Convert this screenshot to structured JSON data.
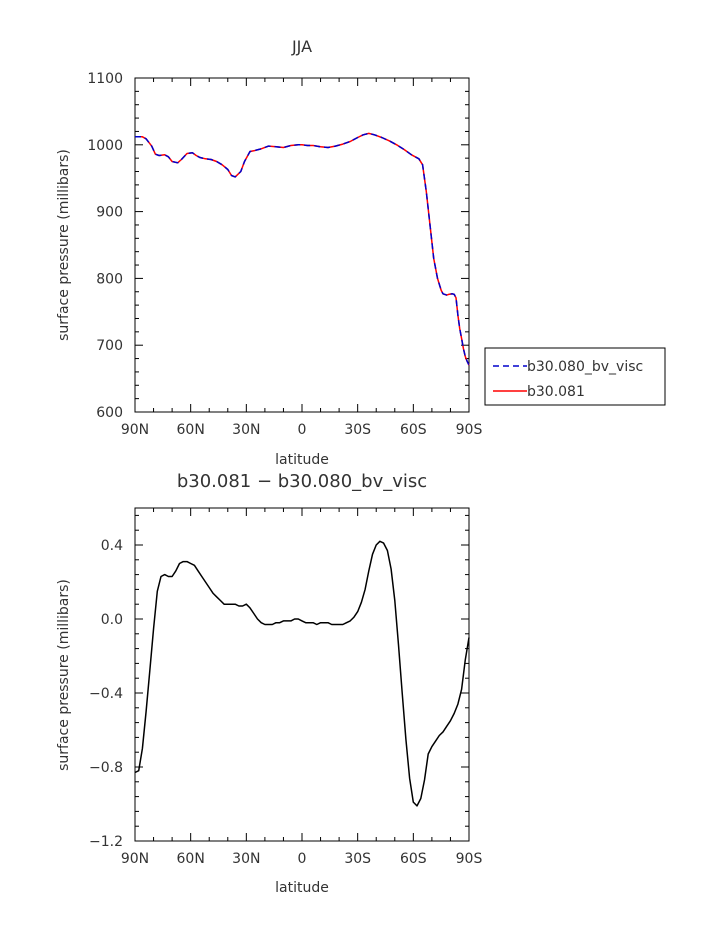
{
  "chart_data": [
    {
      "type": "line",
      "title": "JJA",
      "xlabel": "latitude",
      "ylabel": "surface pressure (millibars)",
      "xlim": [
        90,
        -90
      ],
      "ylim": [
        600,
        1100
      ],
      "x_ticks": [
        90,
        60,
        30,
        0,
        -30,
        -60,
        -90
      ],
      "x_tick_labels": [
        "90N",
        "60N",
        "30N",
        "0",
        "30S",
        "60S",
        "90S"
      ],
      "y_ticks": [
        600,
        700,
        800,
        900,
        1000,
        1100
      ],
      "y_tick_labels": [
        "600",
        "700",
        "800",
        "900",
        "1000",
        "1100"
      ],
      "legend_position": "outside-right",
      "series": [
        {
          "name": "b30.080_bv_visc",
          "color": "#0000cc",
          "dash": true,
          "x": [
            90,
            86,
            84,
            81,
            79,
            77,
            74,
            72,
            70,
            67,
            65,
            62,
            59,
            57,
            55,
            52,
            49,
            46,
            43,
            40,
            38,
            36,
            33,
            31,
            28,
            26,
            22,
            18,
            14,
            10,
            6,
            2,
            0,
            -3,
            -6,
            -10,
            -14,
            -18,
            -22,
            -26,
            -30,
            -33,
            -36,
            -39,
            -43,
            -47,
            -51,
            -55,
            -59,
            -63,
            -65,
            -67,
            -69,
            -71,
            -73,
            -75,
            -76,
            -78,
            -79,
            -81,
            -82,
            -83,
            -84,
            -85,
            -86,
            -87,
            -88,
            -89,
            -90
          ],
          "y": [
            1012,
            1012,
            1009,
            998,
            986,
            984,
            985,
            982,
            975,
            973,
            978,
            987,
            988,
            984,
            981,
            979,
            978,
            975,
            970,
            963,
            954,
            952,
            960,
            975,
            990,
            991,
            994,
            998,
            997,
            996,
            999,
            1000,
            1000,
            999,
            999,
            997,
            996,
            998,
            1001,
            1005,
            1011,
            1015,
            1017,
            1015,
            1011,
            1006,
            1000,
            993,
            985,
            979,
            970,
            930,
            880,
            830,
            800,
            782,
            777,
            775,
            776,
            777,
            776,
            771,
            745,
            725,
            710,
            695,
            683,
            676,
            670
          ]
        },
        {
          "name": "b30.081",
          "color": "#ff0000",
          "dash": false,
          "x": [
            90,
            86,
            84,
            81,
            79,
            77,
            74,
            72,
            70,
            67,
            65,
            62,
            59,
            57,
            55,
            52,
            49,
            46,
            43,
            40,
            38,
            36,
            33,
            31,
            28,
            26,
            22,
            18,
            14,
            10,
            6,
            2,
            0,
            -3,
            -6,
            -10,
            -14,
            -18,
            -22,
            -26,
            -30,
            -33,
            -36,
            -39,
            -43,
            -47,
            -51,
            -55,
            -59,
            -63,
            -65,
            -67,
            -69,
            -71,
            -73,
            -75,
            -76,
            -78,
            -79,
            -81,
            -82,
            -83,
            -84,
            -85,
            -86,
            -87,
            -88,
            -89,
            -90
          ],
          "y": [
            1012,
            1012,
            1009,
            998,
            986,
            984,
            985,
            982,
            975,
            973,
            978,
            987,
            988,
            984,
            981,
            979,
            978,
            975,
            970,
            963,
            954,
            952,
            960,
            975,
            990,
            991,
            994,
            998,
            997,
            996,
            999,
            1000,
            1000,
            999,
            999,
            997,
            996,
            998,
            1001,
            1005,
            1011,
            1015,
            1017,
            1015,
            1011,
            1006,
            1000,
            993,
            985,
            979,
            970,
            930,
            880,
            830,
            800,
            782,
            777,
            775,
            776,
            777,
            776,
            771,
            745,
            725,
            710,
            695,
            683,
            676,
            670
          ]
        }
      ]
    },
    {
      "type": "line",
      "title": "b30.081 − b30.080_bv_visc",
      "xlabel": "latitude",
      "ylabel": "surface pressure (millibars)",
      "xlim": [
        90,
        -90
      ],
      "ylim": [
        -1.2,
        0.6
      ],
      "x_ticks": [
        90,
        60,
        30,
        0,
        -30,
        -60,
        -90
      ],
      "x_tick_labels": [
        "90N",
        "60N",
        "30N",
        "0",
        "30S",
        "60S",
        "90S"
      ],
      "y_ticks": [
        0.4,
        0.0,
        -0.4,
        -0.8,
        -1.2
      ],
      "y_tick_labels": [
        "0.4",
        "0.0",
        "−0.4",
        "−0.8",
        "−1.2"
      ],
      "series": [
        {
          "color": "#000000",
          "dash": false,
          "x": [
            90,
            88,
            86,
            84,
            82,
            80,
            78,
            76,
            74,
            72,
            70,
            68,
            66,
            64,
            62,
            60,
            58,
            56,
            54,
            52,
            50,
            48,
            46,
            44,
            42,
            40,
            38,
            36,
            34,
            32,
            30,
            28,
            26,
            24,
            22,
            20,
            18,
            16,
            14,
            12,
            10,
            8,
            6,
            4,
            2,
            0,
            -2,
            -4,
            -6,
            -8,
            -10,
            -12,
            -14,
            -16,
            -18,
            -20,
            -22,
            -24,
            -26,
            -28,
            -30,
            -32,
            -34,
            -36,
            -38,
            -40,
            -42,
            -44,
            -46,
            -48,
            -50,
            -52,
            -54,
            -56,
            -58,
            -60,
            -62,
            -64,
            -66,
            -68,
            -70,
            -72,
            -74,
            -76,
            -78,
            -80,
            -82,
            -84,
            -86,
            -88,
            -90
          ],
          "y": [
            -0.83,
            -0.82,
            -0.7,
            -0.5,
            -0.28,
            -0.05,
            0.15,
            0.23,
            0.24,
            0.23,
            0.23,
            0.26,
            0.3,
            0.31,
            0.31,
            0.3,
            0.29,
            0.26,
            0.23,
            0.2,
            0.17,
            0.14,
            0.12,
            0.1,
            0.08,
            0.08,
            0.08,
            0.08,
            0.07,
            0.07,
            0.08,
            0.06,
            0.03,
            0.0,
            -0.02,
            -0.03,
            -0.03,
            -0.03,
            -0.02,
            -0.02,
            -0.01,
            -0.01,
            -0.01,
            0.0,
            0.0,
            -0.01,
            -0.02,
            -0.02,
            -0.02,
            -0.03,
            -0.02,
            -0.02,
            -0.02,
            -0.03,
            -0.03,
            -0.03,
            -0.03,
            -0.02,
            -0.01,
            0.01,
            0.04,
            0.09,
            0.16,
            0.26,
            0.35,
            0.4,
            0.42,
            0.41,
            0.37,
            0.27,
            0.1,
            -0.14,
            -0.4,
            -0.65,
            -0.86,
            -0.99,
            -1.01,
            -0.97,
            -0.87,
            -0.73,
            -0.69,
            -0.66,
            -0.63,
            -0.61,
            -0.58,
            -0.55,
            -0.51,
            -0.46,
            -0.38,
            -0.22,
            -0.1
          ]
        }
      ]
    }
  ]
}
